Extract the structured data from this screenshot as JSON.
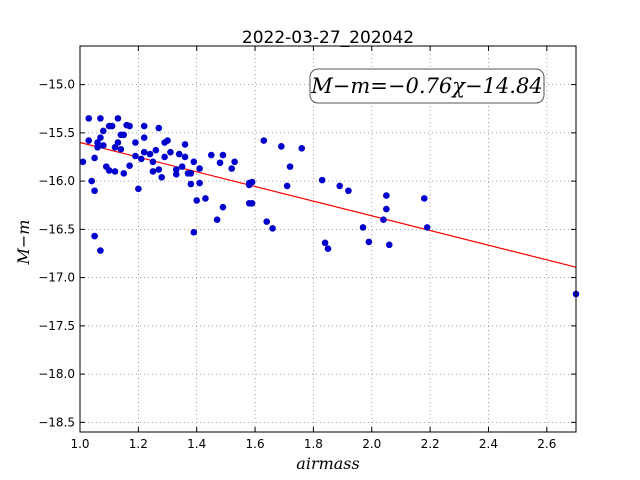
{
  "chart_data": {
    "type": "scatter",
    "title": "2022-03-27_202042",
    "xlabel": "airmass",
    "ylabel": "M−m",
    "annotation": "M−m=−0.76χ−14.84",
    "xlim": [
      1.0,
      2.7
    ],
    "ylim": [
      -18.6,
      -14.6
    ],
    "y_inverted": true,
    "grid": true,
    "x_ticks": [
      1.0,
      1.2,
      1.4,
      1.6,
      1.8,
      2.0,
      2.2,
      2.4,
      2.6
    ],
    "x_tick_labels": [
      "1.0",
      "1.2",
      "1.4",
      "1.6",
      "1.8",
      "2.0",
      "2.2",
      "2.4",
      "2.6"
    ],
    "y_ticks": [
      -15.0,
      -15.5,
      -16.0,
      -16.5,
      -17.0,
      -17.5,
      -18.0,
      -18.5
    ],
    "y_tick_labels": [
      "−15.0",
      "−15.5",
      "−16.0",
      "−16.5",
      "−17.0",
      "−17.5",
      "−18.0",
      "−18.5"
    ],
    "fit": {
      "slope": -0.76,
      "intercept": -14.84,
      "x_range": [
        1.0,
        2.7
      ],
      "color": "#ff0000"
    },
    "point_color": "#0000cc",
    "points": [
      [
        1.01,
        -15.8
      ],
      [
        1.03,
        -15.35
      ],
      [
        1.03,
        -15.58
      ],
      [
        1.04,
        -16.0
      ],
      [
        1.05,
        -15.76
      ],
      [
        1.05,
        -16.1
      ],
      [
        1.05,
        -16.57
      ],
      [
        1.06,
        -15.6
      ],
      [
        1.06,
        -15.65
      ],
      [
        1.07,
        -15.35
      ],
      [
        1.07,
        -15.55
      ],
      [
        1.07,
        -16.72
      ],
      [
        1.08,
        -15.63
      ],
      [
        1.08,
        -15.48
      ],
      [
        1.09,
        -15.85
      ],
      [
        1.1,
        -15.43
      ],
      [
        1.1,
        -15.89
      ],
      [
        1.11,
        -15.43
      ],
      [
        1.12,
        -15.65
      ],
      [
        1.12,
        -15.9
      ],
      [
        1.13,
        -15.6
      ],
      [
        1.13,
        -15.35
      ],
      [
        1.14,
        -15.52
      ],
      [
        1.14,
        -15.67
      ],
      [
        1.15,
        -15.52
      ],
      [
        1.15,
        -15.92
      ],
      [
        1.16,
        -15.42
      ],
      [
        1.17,
        -15.43
      ],
      [
        1.17,
        -15.84
      ],
      [
        1.19,
        -15.74
      ],
      [
        1.19,
        -15.6
      ],
      [
        1.2,
        -16.08
      ],
      [
        1.21,
        -15.77
      ],
      [
        1.22,
        -15.7
      ],
      [
        1.22,
        -15.43
      ],
      [
        1.22,
        -15.55
      ],
      [
        1.24,
        -15.72
      ],
      [
        1.25,
        -15.9
      ],
      [
        1.25,
        -15.8
      ],
      [
        1.26,
        -15.68
      ],
      [
        1.27,
        -15.45
      ],
      [
        1.27,
        -15.88
      ],
      [
        1.28,
        -15.96
      ],
      [
        1.29,
        -15.75
      ],
      [
        1.29,
        -15.6
      ],
      [
        1.3,
        -15.58
      ],
      [
        1.31,
        -15.7
      ],
      [
        1.33,
        -15.93
      ],
      [
        1.33,
        -15.88
      ],
      [
        1.34,
        -15.72
      ],
      [
        1.35,
        -15.85
      ],
      [
        1.36,
        -15.62
      ],
      [
        1.36,
        -15.75
      ],
      [
        1.37,
        -15.92
      ],
      [
        1.38,
        -15.92
      ],
      [
        1.38,
        -16.03
      ],
      [
        1.39,
        -15.8
      ],
      [
        1.39,
        -16.53
      ],
      [
        1.4,
        -16.2
      ],
      [
        1.41,
        -15.87
      ],
      [
        1.41,
        -16.02
      ],
      [
        1.43,
        -16.18
      ],
      [
        1.45,
        -15.73
      ],
      [
        1.47,
        -16.4
      ],
      [
        1.48,
        -15.81
      ],
      [
        1.49,
        -15.73
      ],
      [
        1.49,
        -16.27
      ],
      [
        1.52,
        -15.87
      ],
      [
        1.53,
        -15.8
      ],
      [
        1.58,
        -16.04
      ],
      [
        1.58,
        -16.02
      ],
      [
        1.58,
        -16.23
      ],
      [
        1.59,
        -16.01
      ],
      [
        1.59,
        -16.23
      ],
      [
        1.63,
        -15.58
      ],
      [
        1.64,
        -16.42
      ],
      [
        1.66,
        -16.49
      ],
      [
        1.69,
        -15.64
      ],
      [
        1.71,
        -16.05
      ],
      [
        1.72,
        -15.85
      ],
      [
        1.76,
        -15.66
      ],
      [
        1.83,
        -15.99
      ],
      [
        1.84,
        -16.64
      ],
      [
        1.85,
        -16.7
      ],
      [
        1.89,
        -16.05
      ],
      [
        1.92,
        -16.1
      ],
      [
        1.97,
        -16.48
      ],
      [
        1.99,
        -16.63
      ],
      [
        2.04,
        -16.4
      ],
      [
        2.05,
        -16.15
      ],
      [
        2.05,
        -16.29
      ],
      [
        2.06,
        -16.66
      ],
      [
        2.18,
        -16.18
      ],
      [
        2.19,
        -16.48
      ],
      [
        2.7,
        -17.17
      ]
    ]
  }
}
